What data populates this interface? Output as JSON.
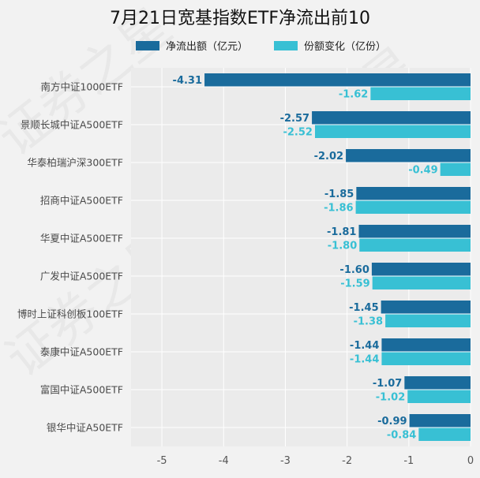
{
  "chart_data": {
    "type": "bar",
    "orientation": "horizontal",
    "title": "7月21日宽基指数ETF净流出前10",
    "categories": [
      "南方中证1000ETF",
      "景顺长城中证A500ETF",
      "华泰柏瑞沪深300ETF",
      "招商中证A500ETF",
      "华夏中证A500ETF",
      "广发中证A500ETF",
      "博时上证科创板100ETF",
      "泰康中证A500ETF",
      "富国中证A500ETF",
      "银华中证A50ETF"
    ],
    "series": [
      {
        "name": "净流出额（亿元）",
        "color": "#1a6b9c",
        "labels": [
          "-4.31",
          "-2.57",
          "-2.02",
          "-1.85",
          "-1.81",
          "-1.60",
          "-1.45",
          "-1.44",
          "-1.07",
          "-0.99"
        ],
        "values": [
          -4.31,
          -2.57,
          -2.02,
          -1.85,
          -1.81,
          -1.6,
          -1.45,
          -1.44,
          -1.07,
          -0.99
        ]
      },
      {
        "name": "份额变化（亿份）",
        "color": "#38c0d4",
        "labels": [
          "-1.62",
          "-2.52",
          "-0.49",
          "-1.86",
          "-1.80",
          "-1.59",
          "-1.38",
          "-1.44",
          "-1.02",
          "-0.84"
        ],
        "values": [
          -1.62,
          -2.52,
          -0.49,
          -1.86,
          -1.8,
          -1.59,
          -1.38,
          -1.44,
          -1.02,
          -0.84
        ]
      }
    ],
    "xlim": [
      -5.5,
      0
    ],
    "xticks": [
      "-5",
      "-4",
      "-3",
      "-2",
      "-1",
      "0"
    ],
    "xtick_values": [
      -5,
      -4,
      -3,
      -2,
      -1,
      0
    ],
    "grid": true,
    "legend_position": "top",
    "plot_background": "#ebebeb",
    "grid_color": "#ffffff",
    "watermark": "证券之星"
  }
}
